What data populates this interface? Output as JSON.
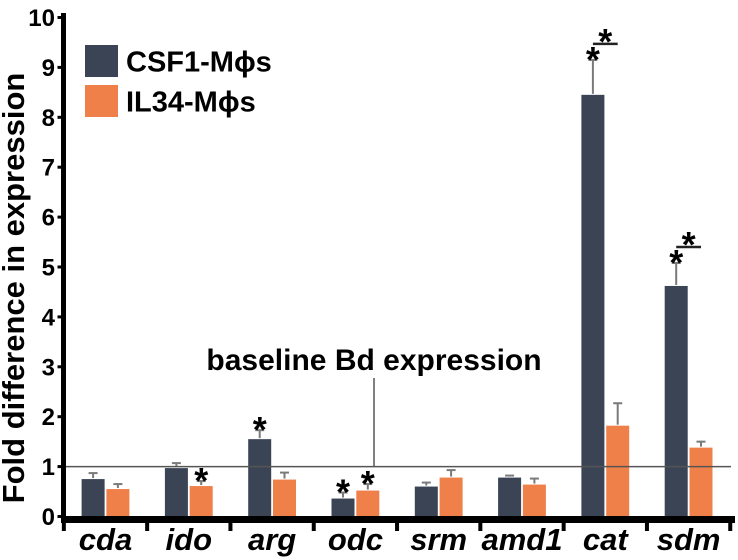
{
  "figure": {
    "background": "#ffffff",
    "axis_color": "#000000",
    "error_bar_color": "#7a7a7a",
    "baseline_line_color": "#555555",
    "star_symbol": "*"
  },
  "chart_data": {
    "type": "bar",
    "title": "",
    "xlabel": "",
    "ylabel": "Fold difference in expression",
    "ylim": [
      0,
      10
    ],
    "yticks": [
      0,
      1,
      2,
      3,
      4,
      5,
      6,
      7,
      8,
      9,
      10
    ],
    "grid": false,
    "legend_position": "top-left",
    "categories": [
      "cda",
      "ido",
      "arg",
      "odc",
      "srm",
      "amd1",
      "cat",
      "sdm"
    ],
    "series": [
      {
        "name": "CSF1-Mϕs",
        "color": "#3a4454",
        "values": [
          0.75,
          0.97,
          1.55,
          0.36,
          0.6,
          0.78,
          8.45,
          4.62
        ],
        "errors": [
          0.12,
          0.1,
          0.18,
          0.12,
          0.08,
          0.04,
          0.7,
          0.46
        ]
      },
      {
        "name": "IL34-Mϕs",
        "color": "#f0804a",
        "values": [
          0.55,
          0.61,
          0.74,
          0.52,
          0.78,
          0.64,
          1.82,
          1.38
        ],
        "errors": [
          0.1,
          0.1,
          0.14,
          0.13,
          0.15,
          0.12,
          0.45,
          0.12
        ]
      }
    ],
    "baseline": {
      "y": 1,
      "label": "baseline Bd expression"
    },
    "significance": {
      "stars": [
        {
          "category": "ido",
          "series": "IL34-Mϕs"
        },
        {
          "category": "arg",
          "series": "CSF1-Mϕs"
        },
        {
          "category": "odc",
          "series": "CSF1-Mϕs"
        },
        {
          "category": "odc",
          "series": "IL34-Mϕs"
        },
        {
          "category": "cat",
          "series": "CSF1-Mϕs"
        },
        {
          "category": "sdm",
          "series": "CSF1-Mϕs"
        }
      ],
      "brackets": [
        {
          "category": "cat",
          "between": [
            "CSF1-Mϕs",
            "IL34-Mϕs"
          ]
        },
        {
          "category": "sdm",
          "between": [
            "CSF1-Mϕs",
            "IL34-Mϕs"
          ]
        }
      ]
    }
  }
}
